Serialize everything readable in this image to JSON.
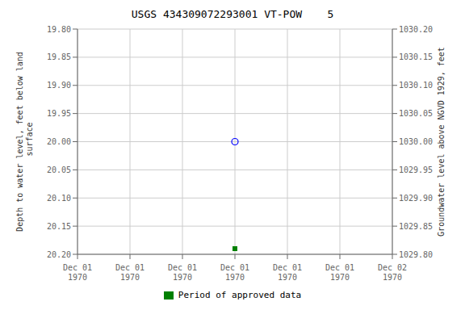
{
  "chart_data": {
    "type": "scatter",
    "title": "USGS 434309072293001 VT-POW    5",
    "y_label": "Depth to water level, feet below land\n surface",
    "y2_label": "Groundwater level above NGVD 1929, feet",
    "categories": [
      "Dec 01\n1970",
      "Dec 01\n1970",
      "Dec 01\n1970",
      "Dec 01\n1970",
      "Dec 01\n1970",
      "Dec 01\n1970",
      "Dec 02\n1970"
    ],
    "series": [
      {
        "color": "#0000ff",
        "marker": "circle",
        "values": [
          null,
          null,
          null,
          20.0,
          null,
          null,
          null
        ]
      },
      {
        "name": "Period of approved data",
        "color": "#008000",
        "marker": "square",
        "values": [
          null,
          null,
          null,
          20.19,
          null,
          null,
          null
        ]
      }
    ],
    "ylim": [
      20.2,
      19.8
    ],
    "yticks": [
      {
        "value": 19.8,
        "label": "19.80"
      },
      {
        "value": 19.85,
        "label": "19.85"
      },
      {
        "value": 19.9,
        "label": "19.90"
      },
      {
        "value": 19.95,
        "label": "19.95"
      },
      {
        "value": 20.0,
        "label": "20.00"
      },
      {
        "value": 20.05,
        "label": "20.05"
      },
      {
        "value": 20.1,
        "label": "20.10"
      },
      {
        "value": 20.15,
        "label": "20.15"
      },
      {
        "value": 20.2,
        "label": "20.20"
      }
    ],
    "y2lim": [
      1029.8,
      1030.2
    ],
    "y2ticks": [
      {
        "value": 1030.2,
        "label": "1030.20"
      },
      {
        "value": 1030.15,
        "label": "1030.15"
      },
      {
        "value": 1030.1,
        "label": "1030.10"
      },
      {
        "value": 1030.05,
        "label": "1030.05"
      },
      {
        "value": 1030.0,
        "label": "1030.00"
      },
      {
        "value": 1029.95,
        "label": "1029.95"
      },
      {
        "value": 1029.9,
        "label": "1029.90"
      },
      {
        "value": 1029.85,
        "label": "1029.85"
      },
      {
        "value": 1029.8,
        "label": "1029.80"
      }
    ],
    "grid": true,
    "legend": "bottom"
  }
}
